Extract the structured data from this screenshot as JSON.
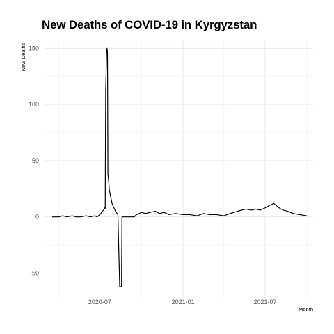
{
  "chart_data": {
    "type": "line",
    "title": "New Deaths of COVID-19 in Kyrgyzstan",
    "xlabel": "Month",
    "ylabel": "New Deaths",
    "x_ticks": [
      "2020-07",
      "2021-01",
      "2021-07"
    ],
    "y_ticks": [
      150,
      100,
      50,
      0,
      -50
    ],
    "xlim": [
      "2020-03-01",
      "2021-10-15"
    ],
    "ylim": [
      -72,
      157
    ],
    "grid": true,
    "line_color": "#000000",
    "series": [
      {
        "x": [
          "2020-03-18",
          "2020-04-01",
          "2020-04-10",
          "2020-04-20",
          "2020-05-01",
          "2020-05-10",
          "2020-05-20",
          "2020-06-01",
          "2020-06-10",
          "2020-06-20",
          "2020-06-25",
          "2020-07-01",
          "2020-07-05",
          "2020-07-09",
          "2020-07-12",
          "2020-07-13",
          "2020-07-14",
          "2020-07-15",
          "2020-07-16",
          "2020-07-17",
          "2020-07-18",
          "2020-07-19",
          "2020-07-20",
          "2020-07-21",
          "2020-07-22",
          "2020-07-23",
          "2020-07-24",
          "2020-07-26",
          "2020-07-28",
          "2020-07-31",
          "2020-08-05",
          "2020-08-10",
          "2020-08-14",
          "2020-08-15",
          "2020-08-18",
          "2020-08-19",
          "2020-08-20",
          "2020-09-01",
          "2020-09-15",
          "2020-09-20",
          "2020-10-01",
          "2020-10-10",
          "2020-10-20",
          "2020-11-01",
          "2020-11-10",
          "2020-11-20",
          "2020-12-01",
          "2020-12-15",
          "2021-01-01",
          "2021-01-15",
          "2021-02-01",
          "2021-02-15",
          "2021-03-01",
          "2021-03-15",
          "2021-04-01",
          "2021-04-15",
          "2021-05-01",
          "2021-05-10",
          "2021-05-20",
          "2021-06-01",
          "2021-06-10",
          "2021-06-20",
          "2021-07-01",
          "2021-07-10",
          "2021-07-20",
          "2021-08-01",
          "2021-08-10",
          "2021-08-20",
          "2021-09-01",
          "2021-09-15",
          "2021-10-01"
        ],
        "y": [
          0,
          0,
          1,
          0,
          1,
          0,
          0,
          1,
          0,
          1,
          0,
          2,
          4,
          6,
          8,
          7,
          112,
          130,
          148,
          150,
          146,
          38,
          34,
          30,
          24,
          22,
          20,
          16,
          12,
          9,
          5,
          2,
          -62,
          -62,
          -62,
          0,
          0,
          0,
          0,
          2,
          4,
          3,
          4,
          5,
          3,
          4,
          2,
          3,
          2,
          2,
          1,
          3,
          2,
          2,
          1,
          3,
          5,
          6,
          7,
          6,
          7,
          6,
          8,
          10,
          12,
          8,
          6,
          5,
          3,
          2,
          1
        ]
      }
    ]
  }
}
